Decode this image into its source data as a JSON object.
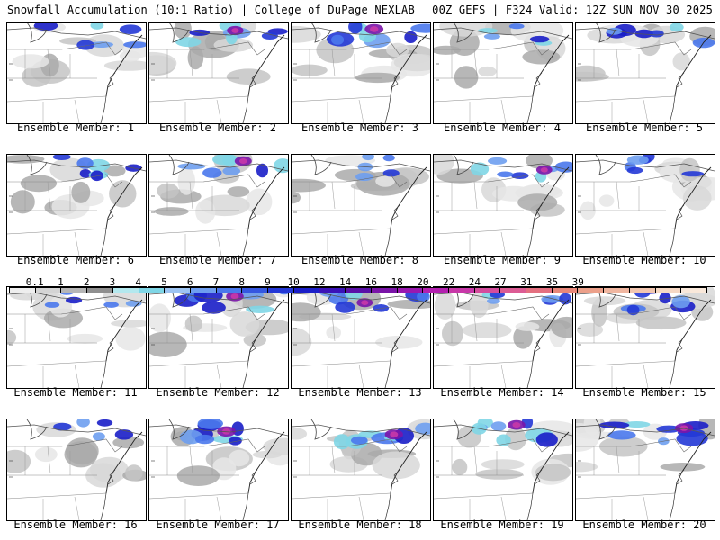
{
  "header": {
    "left": "Snowfall Accumulation (10:1 Ratio) | College of DuPage NEXLAB",
    "right": "00Z GEFS | F324 Valid: 12Z SUN NOV 30 2025"
  },
  "colorbar": {
    "ticks": [
      "0.1",
      "1",
      "2",
      "3",
      "4",
      "5",
      "6",
      "7",
      "8",
      "9",
      "10",
      "12",
      "14",
      "16",
      "18",
      "20",
      "22",
      "24",
      "27",
      "31",
      "35",
      "39"
    ],
    "colors": [
      "#eeeeee",
      "#d4d4d4",
      "#b6b6b6",
      "#8f8f8f",
      "#b3e8ee",
      "#7fd6e6",
      "#9dc4f2",
      "#6e9ef0",
      "#4a78ec",
      "#3557e0",
      "#2438d6",
      "#1a1ec8",
      "#3a12b8",
      "#5a10a8",
      "#7a14a8",
      "#9a18b0",
      "#b420b0",
      "#c838a8",
      "#d44c9c",
      "#dc5c94",
      "#e47080",
      "#e8877a",
      "#eca08a",
      "#f0b6a0",
      "#f2c6b0",
      "#f6d8c4",
      "#f9e8da"
    ]
  },
  "members": [
    {
      "label": "Ensemble Member: 1",
      "intensity": 0.55
    },
    {
      "label": "Ensemble Member: 2",
      "intensity": 0.7
    },
    {
      "label": "Ensemble Member: 3",
      "intensity": 0.9
    },
    {
      "label": "Ensemble Member: 4",
      "intensity": 0.35
    },
    {
      "label": "Ensemble Member: 5",
      "intensity": 0.6
    },
    {
      "label": "Ensemble Member: 6",
      "intensity": 0.6
    },
    {
      "label": "Ensemble Member: 7",
      "intensity": 0.75
    },
    {
      "label": "Ensemble Member: 8",
      "intensity": 0.3
    },
    {
      "label": "Ensemble Member: 9",
      "intensity": 0.65
    },
    {
      "label": "Ensemble Member: 10",
      "intensity": 0.5
    },
    {
      "label": "Ensemble Member: 11",
      "intensity": 0.25
    },
    {
      "label": "Ensemble Member: 12",
      "intensity": 0.8
    },
    {
      "label": "Ensemble Member: 13",
      "intensity": 0.65
    },
    {
      "label": "Ensemble Member: 14",
      "intensity": 0.55
    },
    {
      "label": "Ensemble Member: 15",
      "intensity": 0.6
    },
    {
      "label": "Ensemble Member: 16",
      "intensity": 0.4
    },
    {
      "label": "Ensemble Member: 17",
      "intensity": 0.9
    },
    {
      "label": "Ensemble Member: 18",
      "intensity": 0.85
    },
    {
      "label": "Ensemble Member: 19",
      "intensity": 0.8
    },
    {
      "label": "Ensemble Member: 20",
      "intensity": 0.85
    }
  ]
}
